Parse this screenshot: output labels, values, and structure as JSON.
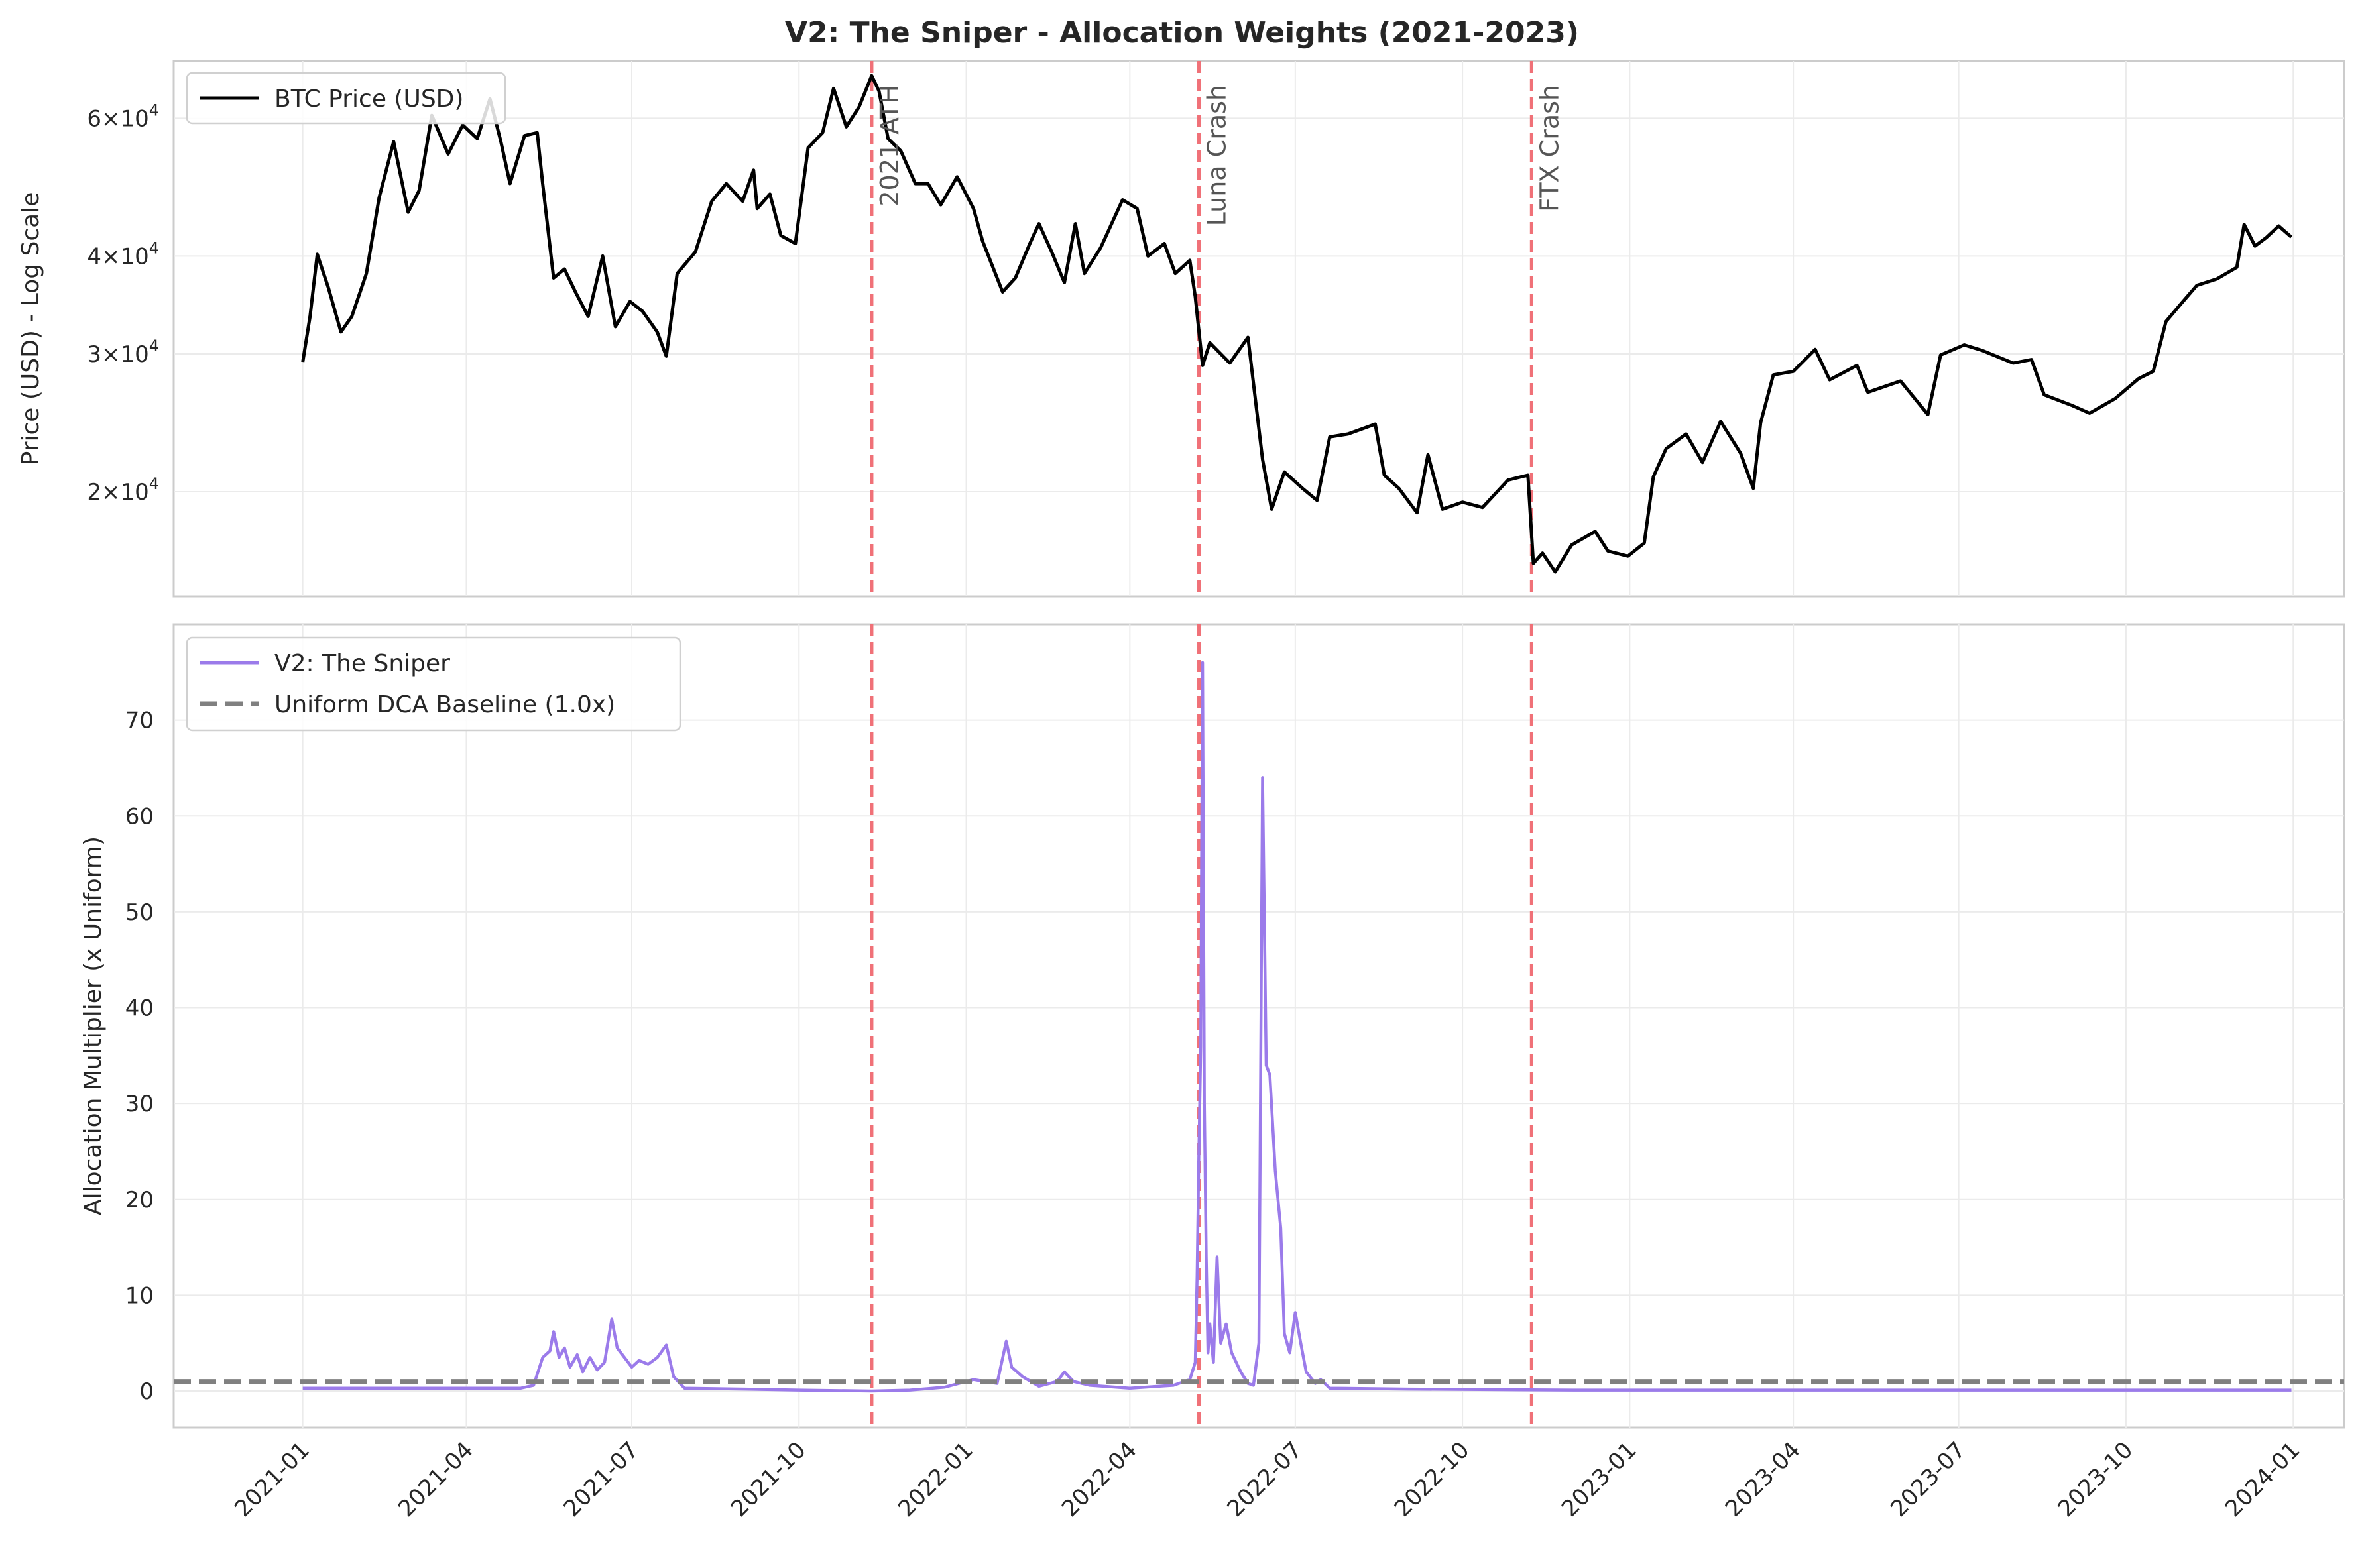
{
  "chart_data": {
    "title": "V2: The Sniper - Allocation Weights (2021-2023)",
    "type": "line",
    "x_range": [
      "2020-10-22",
      "2024-01-29"
    ],
    "x_ticks": [
      "2021-01",
      "2021-04",
      "2021-07",
      "2021-10",
      "2022-01",
      "2022-04",
      "2022-07",
      "2022-10",
      "2023-01",
      "2023-04",
      "2023-07",
      "2023-10",
      "2024-01"
    ],
    "grid": true,
    "events": [
      {
        "date": "2021-11-10",
        "label": "2021 ATH",
        "color": "#f07178"
      },
      {
        "date": "2022-05-09",
        "label": "Luna Crash",
        "color": "#f07178"
      },
      {
        "date": "2022-11-08",
        "label": "FTX Crash",
        "color": "#f07178"
      }
    ],
    "price_panel": {
      "ylabel": "Price (USD) - Log Scale",
      "scale": "log",
      "ylim": [
        14700,
        71000
      ],
      "y_ticks": [
        {
          "value": 20000,
          "mantissa": "2",
          "base": "×10",
          "exp": "4"
        },
        {
          "value": 30000,
          "mantissa": "3",
          "base": "×10",
          "exp": "4"
        },
        {
          "value": 40000,
          "mantissa": "4",
          "base": "×10",
          "exp": "4"
        },
        {
          "value": 60000,
          "mantissa": "6",
          "base": "×10",
          "exp": "4"
        }
      ],
      "legend": {
        "position": "upper-left",
        "entries": [
          {
            "label": "BTC Price (USD)",
            "color": "#000000"
          }
        ]
      },
      "series": {
        "name": "BTC Price (USD)",
        "color": "#000000",
        "points": [
          [
            "2021-01-01",
            29300
          ],
          [
            "2021-01-05",
            33500
          ],
          [
            "2021-01-09",
            40200
          ],
          [
            "2021-01-15",
            36500
          ],
          [
            "2021-01-22",
            32000
          ],
          [
            "2021-01-28",
            33500
          ],
          [
            "2021-02-05",
            38000
          ],
          [
            "2021-02-12",
            47500
          ],
          [
            "2021-02-20",
            56000
          ],
          [
            "2021-02-28",
            45500
          ],
          [
            "2021-03-06",
            48500
          ],
          [
            "2021-03-13",
            60500
          ],
          [
            "2021-03-22",
            54000
          ],
          [
            "2021-03-30",
            58800
          ],
          [
            "2021-04-07",
            56500
          ],
          [
            "2021-04-14",
            63500
          ],
          [
            "2021-04-20",
            56000
          ],
          [
            "2021-04-25",
            49500
          ],
          [
            "2021-05-03",
            57000
          ],
          [
            "2021-05-10",
            57500
          ],
          [
            "2021-05-13",
            49500
          ],
          [
            "2021-05-19",
            37500
          ],
          [
            "2021-05-25",
            38500
          ],
          [
            "2021-05-31",
            36000
          ],
          [
            "2021-06-07",
            33500
          ],
          [
            "2021-06-15",
            40000
          ],
          [
            "2021-06-22",
            32500
          ],
          [
            "2021-06-30",
            35000
          ],
          [
            "2021-07-07",
            34000
          ],
          [
            "2021-07-15",
            32000
          ],
          [
            "2021-07-20",
            29800
          ],
          [
            "2021-07-26",
            38000
          ],
          [
            "2021-08-05",
            40500
          ],
          [
            "2021-08-14",
            47000
          ],
          [
            "2021-08-22",
            49500
          ],
          [
            "2021-08-31",
            47000
          ],
          [
            "2021-09-06",
            51500
          ],
          [
            "2021-09-08",
            46000
          ],
          [
            "2021-09-15",
            48000
          ],
          [
            "2021-09-21",
            42500
          ],
          [
            "2021-09-29",
            41500
          ],
          [
            "2021-10-06",
            55000
          ],
          [
            "2021-10-14",
            57500
          ],
          [
            "2021-10-20",
            65500
          ],
          [
            "2021-10-27",
            58500
          ],
          [
            "2021-11-03",
            62000
          ],
          [
            "2021-11-10",
            68000
          ],
          [
            "2021-11-14",
            65000
          ],
          [
            "2021-11-19",
            56500
          ],
          [
            "2021-11-26",
            54500
          ],
          [
            "2021-12-04",
            49500
          ],
          [
            "2021-12-11",
            49500
          ],
          [
            "2021-12-18",
            46500
          ],
          [
            "2021-12-27",
            50500
          ],
          [
            "2022-01-05",
            46000
          ],
          [
            "2022-01-10",
            41800
          ],
          [
            "2022-01-21",
            36000
          ],
          [
            "2022-01-28",
            37500
          ],
          [
            "2022-02-05",
            41500
          ],
          [
            "2022-02-10",
            44000
          ],
          [
            "2022-02-17",
            40500
          ],
          [
            "2022-02-24",
            37000
          ],
          [
            "2022-03-02",
            44000
          ],
          [
            "2022-03-07",
            38000
          ],
          [
            "2022-03-16",
            41000
          ],
          [
            "2022-03-28",
            47200
          ],
          [
            "2022-04-05",
            46000
          ],
          [
            "2022-04-11",
            40000
          ],
          [
            "2022-04-20",
            41500
          ],
          [
            "2022-04-26",
            38000
          ],
          [
            "2022-05-04",
            39500
          ],
          [
            "2022-05-07",
            35500
          ],
          [
            "2022-05-11",
            29000
          ],
          [
            "2022-05-15",
            31000
          ],
          [
            "2022-05-26",
            29200
          ],
          [
            "2022-06-05",
            31500
          ],
          [
            "2022-06-13",
            22000
          ],
          [
            "2022-06-18",
            19000
          ],
          [
            "2022-06-25",
            21200
          ],
          [
            "2022-07-05",
            20200
          ],
          [
            "2022-07-13",
            19500
          ],
          [
            "2022-07-20",
            23500
          ],
          [
            "2022-07-30",
            23700
          ],
          [
            "2022-08-14",
            24400
          ],
          [
            "2022-08-19",
            21000
          ],
          [
            "2022-08-27",
            20200
          ],
          [
            "2022-09-06",
            18800
          ],
          [
            "2022-09-12",
            22300
          ],
          [
            "2022-09-20",
            19000
          ],
          [
            "2022-10-01",
            19400
          ],
          [
            "2022-10-12",
            19100
          ],
          [
            "2022-10-26",
            20700
          ],
          [
            "2022-11-06",
            21000
          ],
          [
            "2022-11-09",
            16200
          ],
          [
            "2022-11-14",
            16700
          ],
          [
            "2022-11-21",
            15800
          ],
          [
            "2022-11-30",
            17100
          ],
          [
            "2022-12-13",
            17800
          ],
          [
            "2022-12-20",
            16800
          ],
          [
            "2022-12-31",
            16550
          ],
          [
            "2023-01-09",
            17200
          ],
          [
            "2023-01-14",
            20900
          ],
          [
            "2023-01-21",
            22700
          ],
          [
            "2023-02-01",
            23700
          ],
          [
            "2023-02-10",
            21800
          ],
          [
            "2023-02-20",
            24600
          ],
          [
            "2023-03-03",
            22400
          ],
          [
            "2023-03-10",
            20200
          ],
          [
            "2023-03-14",
            24500
          ],
          [
            "2023-03-21",
            28200
          ],
          [
            "2023-04-01",
            28500
          ],
          [
            "2023-04-13",
            30400
          ],
          [
            "2023-04-21",
            27800
          ],
          [
            "2023-05-06",
            29000
          ],
          [
            "2023-05-12",
            26800
          ],
          [
            "2023-05-30",
            27700
          ],
          [
            "2023-06-14",
            25100
          ],
          [
            "2023-06-21",
            29900
          ],
          [
            "2023-07-04",
            30800
          ],
          [
            "2023-07-14",
            30300
          ],
          [
            "2023-07-31",
            29200
          ],
          [
            "2023-08-10",
            29500
          ],
          [
            "2023-08-17",
            26600
          ],
          [
            "2023-09-01",
            25800
          ],
          [
            "2023-09-11",
            25200
          ],
          [
            "2023-09-25",
            26300
          ],
          [
            "2023-10-08",
            27900
          ],
          [
            "2023-10-16",
            28500
          ],
          [
            "2023-10-23",
            33000
          ],
          [
            "2023-10-31",
            34700
          ],
          [
            "2023-11-09",
            36700
          ],
          [
            "2023-11-20",
            37400
          ],
          [
            "2023-12-01",
            38700
          ],
          [
            "2023-12-05",
            43900
          ],
          [
            "2023-12-11",
            41200
          ],
          [
            "2023-12-17",
            42200
          ],
          [
            "2023-12-24",
            43700
          ],
          [
            "2023-12-31",
            42300
          ]
        ]
      }
    },
    "allocation_panel": {
      "ylabel": "Allocation Multiplier (x Uniform)",
      "ylim": [
        -3.8,
        80
      ],
      "y_ticks": [
        0,
        10,
        20,
        30,
        40,
        50,
        60,
        70
      ],
      "legend": {
        "position": "upper-left",
        "entries": [
          {
            "label": "V2: The Sniper",
            "color": "#9b7bea",
            "style": "solid"
          },
          {
            "label": "Uniform DCA Baseline (1.0x)",
            "color": "#808080",
            "style": "dashed"
          }
        ]
      },
      "baseline": {
        "name": "Uniform DCA Baseline (1.0x)",
        "value": 1.0,
        "color": "#808080"
      },
      "series": {
        "name": "V2: The Sniper",
        "color": "#9b7bea",
        "points": [
          [
            "2021-01-01",
            0.3
          ],
          [
            "2021-03-01",
            0.3
          ],
          [
            "2021-05-01",
            0.3
          ],
          [
            "2021-05-08",
            0.6
          ],
          [
            "2021-05-13",
            3.5
          ],
          [
            "2021-05-17",
            4.2
          ],
          [
            "2021-05-19",
            6.2
          ],
          [
            "2021-05-22",
            3.5
          ],
          [
            "2021-05-25",
            4.5
          ],
          [
            "2021-05-28",
            2.5
          ],
          [
            "2021-06-01",
            3.8
          ],
          [
            "2021-06-04",
            2.0
          ],
          [
            "2021-06-08",
            3.5
          ],
          [
            "2021-06-12",
            2.2
          ],
          [
            "2021-06-16",
            3.0
          ],
          [
            "2021-06-20",
            7.5
          ],
          [
            "2021-06-23",
            4.5
          ],
          [
            "2021-06-27",
            3.5
          ],
          [
            "2021-07-01",
            2.5
          ],
          [
            "2021-07-05",
            3.2
          ],
          [
            "2021-07-10",
            2.8
          ],
          [
            "2021-07-15",
            3.5
          ],
          [
            "2021-07-20",
            4.8
          ],
          [
            "2021-07-24",
            1.5
          ],
          [
            "2021-07-30",
            0.3
          ],
          [
            "2021-09-01",
            0.2
          ],
          [
            "2021-10-01",
            0.1
          ],
          [
            "2021-11-10",
            0.0
          ],
          [
            "2021-12-01",
            0.1
          ],
          [
            "2021-12-20",
            0.4
          ],
          [
            "2022-01-05",
            1.2
          ],
          [
            "2022-01-18",
            0.8
          ],
          [
            "2022-01-23",
            5.2
          ],
          [
            "2022-01-26",
            2.5
          ],
          [
            "2022-02-01",
            1.5
          ],
          [
            "2022-02-10",
            0.5
          ],
          [
            "2022-02-20",
            1.0
          ],
          [
            "2022-02-24",
            2.0
          ],
          [
            "2022-03-01",
            1.0
          ],
          [
            "2022-03-10",
            0.6
          ],
          [
            "2022-04-01",
            0.3
          ],
          [
            "2022-04-25",
            0.6
          ],
          [
            "2022-05-04",
            1.2
          ],
          [
            "2022-05-07",
            3.0
          ],
          [
            "2022-05-08",
            12.0
          ],
          [
            "2022-05-09",
            25.0
          ],
          [
            "2022-05-10",
            36.0
          ],
          [
            "2022-05-11",
            76.0
          ],
          [
            "2022-05-12",
            30.0
          ],
          [
            "2022-05-13",
            14.0
          ],
          [
            "2022-05-14",
            4.0
          ],
          [
            "2022-05-15",
            7.0
          ],
          [
            "2022-05-17",
            3.0
          ],
          [
            "2022-05-19",
            14.0
          ],
          [
            "2022-05-21",
            5.0
          ],
          [
            "2022-05-24",
            7.0
          ],
          [
            "2022-05-27",
            4.0
          ],
          [
            "2022-06-01",
            2.0
          ],
          [
            "2022-06-05",
            0.8
          ],
          [
            "2022-06-08",
            0.6
          ],
          [
            "2022-06-11",
            5.0
          ],
          [
            "2022-06-13",
            64.0
          ],
          [
            "2022-06-15",
            34.0
          ],
          [
            "2022-06-17",
            33.0
          ],
          [
            "2022-06-20",
            23.0
          ],
          [
            "2022-06-23",
            17.0
          ],
          [
            "2022-06-25",
            6.0
          ],
          [
            "2022-06-28",
            4.0
          ],
          [
            "2022-07-01",
            8.2
          ],
          [
            "2022-07-04",
            5.0
          ],
          [
            "2022-07-07",
            2.0
          ],
          [
            "2022-07-12",
            0.8
          ],
          [
            "2022-07-15",
            1.2
          ],
          [
            "2022-07-20",
            0.3
          ],
          [
            "2022-09-01",
            0.2
          ],
          [
            "2022-12-01",
            0.1
          ],
          [
            "2023-06-01",
            0.1
          ],
          [
            "2023-12-31",
            0.1
          ]
        ]
      }
    }
  }
}
